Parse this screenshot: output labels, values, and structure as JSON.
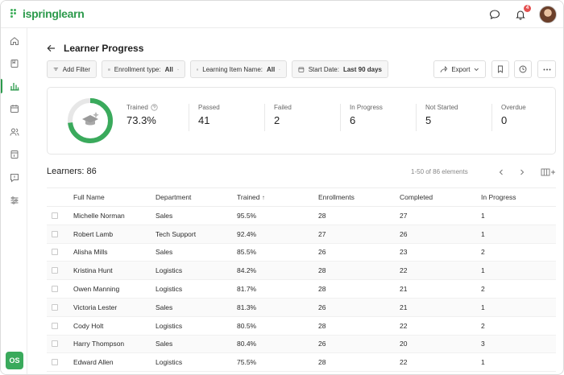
{
  "app": {
    "logo_text": "ispringlearn",
    "notification_count": "4"
  },
  "sidebar": {
    "items": [
      {
        "icon": "home-icon"
      },
      {
        "icon": "catalog-icon"
      },
      {
        "icon": "reports-icon",
        "active": true
      },
      {
        "icon": "calendar-icon"
      },
      {
        "icon": "users-icon"
      },
      {
        "icon": "assignments-icon"
      },
      {
        "icon": "help-icon"
      },
      {
        "icon": "settings-icon"
      }
    ],
    "user_initials": "OS"
  },
  "header": {
    "title": "Learner Progress"
  },
  "filters": {
    "add_filter": "Add Filter",
    "enrollment_label": "Enrollment type:",
    "enrollment_value": "All",
    "learning_item_label": "Learning Item Name:",
    "learning_item_value": "All",
    "start_date_label": "Start Date:",
    "start_date_value": "Last 90 days",
    "export": "Export"
  },
  "stats": {
    "trained_label": "Trained",
    "trained_value": "73.3%",
    "trained_fraction": 0.733,
    "passed_label": "Passed",
    "passed_value": "41",
    "failed_label": "Failed",
    "failed_value": "2",
    "in_progress_label": "In Progress",
    "in_progress_value": "6",
    "not_started_label": "Not Started",
    "not_started_value": "5",
    "overdue_label": "Overdue",
    "overdue_value": "0"
  },
  "learners": {
    "title": "Learners: 86",
    "pagination": "1-50 of 86 elements",
    "columns": [
      "Full Name",
      "Department",
      "Trained",
      "Enrollments",
      "Completed",
      "In Progress"
    ],
    "rows": [
      [
        "Michelle Norman",
        "Sales",
        "95.5%",
        "28",
        "27",
        "1"
      ],
      [
        "Robert Lamb",
        "Tech Support",
        "92.4%",
        "27",
        "26",
        "1"
      ],
      [
        "Alisha Mills",
        "Sales",
        "85.5%",
        "26",
        "23",
        "2"
      ],
      [
        "Kristina Hunt",
        "Logistics",
        "84.2%",
        "28",
        "22",
        "1"
      ],
      [
        "Owen Manning",
        "Logistics",
        "81.7%",
        "28",
        "21",
        "2"
      ],
      [
        "Victoria Lester",
        "Sales",
        "81.3%",
        "26",
        "21",
        "1"
      ],
      [
        "Cody Holt",
        "Logistics",
        "80.5%",
        "28",
        "22",
        "2"
      ],
      [
        "Harry Thompson",
        "Sales",
        "80.4%",
        "26",
        "20",
        "3"
      ],
      [
        "Edward Allen",
        "Logistics",
        "75.5%",
        "28",
        "22",
        "1"
      ]
    ]
  },
  "colors": {
    "accent": "#2c9a4c",
    "donut_fill": "#3aaa5c",
    "donut_track": "#e7e7e7"
  }
}
